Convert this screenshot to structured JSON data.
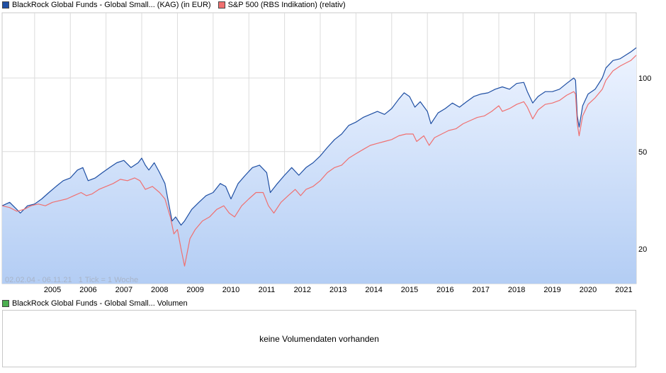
{
  "legend_top": [
    {
      "label": "BlackRock Global Funds - Global Small... (KAG) (in EUR)",
      "color": "#1f4fa3"
    },
    {
      "label": "S&P 500 (RBS Indikation) (relativ)",
      "color": "#f07070"
    }
  ],
  "legend_bottom": {
    "label": "BlackRock Global Funds - Global Small... Volumen",
    "color": "#4caf50"
  },
  "range_note": "02.02.04 - 06.11.21   1 Tick = 1 Woche",
  "volume_message": "keine Volumendaten vorhanden",
  "chart_data": {
    "type": "line",
    "y_scale": "log",
    "y_ticks": [
      20,
      50,
      100
    ],
    "x_tick_labels": [
      "2005",
      "2006",
      "2007",
      "2008",
      "2009",
      "2010",
      "2011",
      "2012",
      "2013",
      "2014",
      "2015",
      "2016",
      "2017",
      "2018",
      "2019",
      "2020",
      "2021"
    ],
    "x_range": [
      2004.09,
      2021.85
    ],
    "y_range": [
      14.4,
      185
    ],
    "grid": true,
    "legend_position": "top-left",
    "series": [
      {
        "name": "BlackRock Global Funds - Global Small... (KAG) (in EUR)",
        "color": "#1f4fa3",
        "fill": true,
        "points": [
          [
            2004.09,
            30
          ],
          [
            2004.3,
            31
          ],
          [
            2004.5,
            29
          ],
          [
            2004.6,
            28
          ],
          [
            2004.8,
            30
          ],
          [
            2005.0,
            30.5
          ],
          [
            2005.2,
            32
          ],
          [
            2005.4,
            34
          ],
          [
            2005.6,
            36
          ],
          [
            2005.8,
            38
          ],
          [
            2006.0,
            39
          ],
          [
            2006.2,
            42
          ],
          [
            2006.35,
            43
          ],
          [
            2006.5,
            38
          ],
          [
            2006.7,
            39
          ],
          [
            2006.9,
            41
          ],
          [
            2007.1,
            43
          ],
          [
            2007.3,
            45
          ],
          [
            2007.5,
            46
          ],
          [
            2007.7,
            43
          ],
          [
            2007.9,
            45
          ],
          [
            2008.0,
            47
          ],
          [
            2008.1,
            44
          ],
          [
            2008.2,
            42
          ],
          [
            2008.35,
            45
          ],
          [
            2008.5,
            41
          ],
          [
            2008.65,
            37
          ],
          [
            2008.75,
            31
          ],
          [
            2008.85,
            26
          ],
          [
            2008.95,
            27
          ],
          [
            2009.1,
            25
          ],
          [
            2009.2,
            26
          ],
          [
            2009.4,
            29
          ],
          [
            2009.6,
            31
          ],
          [
            2009.8,
            33
          ],
          [
            2010.0,
            34
          ],
          [
            2010.2,
            37
          ],
          [
            2010.35,
            36
          ],
          [
            2010.5,
            32
          ],
          [
            2010.7,
            37
          ],
          [
            2010.9,
            40
          ],
          [
            2011.1,
            43
          ],
          [
            2011.3,
            44
          ],
          [
            2011.5,
            41
          ],
          [
            2011.6,
            34
          ],
          [
            2011.8,
            37
          ],
          [
            2012.0,
            40
          ],
          [
            2012.2,
            43
          ],
          [
            2012.4,
            40
          ],
          [
            2012.6,
            43
          ],
          [
            2012.8,
            45
          ],
          [
            2013.0,
            48
          ],
          [
            2013.2,
            52
          ],
          [
            2013.4,
            56
          ],
          [
            2013.6,
            59
          ],
          [
            2013.8,
            64
          ],
          [
            2014.0,
            66
          ],
          [
            2014.2,
            69
          ],
          [
            2014.4,
            71
          ],
          [
            2014.6,
            73
          ],
          [
            2014.8,
            71
          ],
          [
            2015.0,
            75
          ],
          [
            2015.2,
            82
          ],
          [
            2015.35,
            87
          ],
          [
            2015.5,
            84
          ],
          [
            2015.65,
            76
          ],
          [
            2015.8,
            80
          ],
          [
            2016.0,
            73
          ],
          [
            2016.1,
            65
          ],
          [
            2016.3,
            72
          ],
          [
            2016.5,
            75
          ],
          [
            2016.7,
            79
          ],
          [
            2016.9,
            76
          ],
          [
            2017.1,
            80
          ],
          [
            2017.3,
            84
          ],
          [
            2017.5,
            86
          ],
          [
            2017.7,
            87
          ],
          [
            2017.9,
            90
          ],
          [
            2018.1,
            92
          ],
          [
            2018.3,
            90
          ],
          [
            2018.5,
            95
          ],
          [
            2018.7,
            96
          ],
          [
            2018.8,
            88
          ],
          [
            2018.95,
            79
          ],
          [
            2019.1,
            84
          ],
          [
            2019.3,
            88
          ],
          [
            2019.5,
            88
          ],
          [
            2019.7,
            90
          ],
          [
            2019.9,
            95
          ],
          [
            2020.1,
            100
          ],
          [
            2020.15,
            98
          ],
          [
            2020.2,
            70
          ],
          [
            2020.25,
            63
          ],
          [
            2020.35,
            77
          ],
          [
            2020.5,
            86
          ],
          [
            2020.7,
            90
          ],
          [
            2020.9,
            100
          ],
          [
            2021.0,
            110
          ],
          [
            2021.2,
            118
          ],
          [
            2021.4,
            120
          ],
          [
            2021.55,
            124
          ],
          [
            2021.7,
            128
          ],
          [
            2021.85,
            133
          ]
        ]
      },
      {
        "name": "S&P 500 (RBS Indikation) (relativ)",
        "color": "#f07070",
        "fill": false,
        "points": [
          [
            2004.09,
            30
          ],
          [
            2004.3,
            29.5
          ],
          [
            2004.5,
            28.5
          ],
          [
            2004.7,
            29
          ],
          [
            2004.9,
            30
          ],
          [
            2005.1,
            30.5
          ],
          [
            2005.3,
            30
          ],
          [
            2005.5,
            31
          ],
          [
            2005.7,
            31.5
          ],
          [
            2005.9,
            32
          ],
          [
            2006.1,
            33
          ],
          [
            2006.3,
            34
          ],
          [
            2006.45,
            33
          ],
          [
            2006.6,
            33.5
          ],
          [
            2006.8,
            35
          ],
          [
            2007.0,
            36
          ],
          [
            2007.2,
            37
          ],
          [
            2007.4,
            38.5
          ],
          [
            2007.6,
            38
          ],
          [
            2007.8,
            39
          ],
          [
            2007.95,
            38
          ],
          [
            2008.1,
            35
          ],
          [
            2008.3,
            36
          ],
          [
            2008.5,
            34
          ],
          [
            2008.65,
            32
          ],
          [
            2008.8,
            27
          ],
          [
            2008.9,
            23
          ],
          [
            2009.0,
            24
          ],
          [
            2009.1,
            20
          ],
          [
            2009.2,
            17
          ],
          [
            2009.35,
            22
          ],
          [
            2009.5,
            24
          ],
          [
            2009.7,
            26
          ],
          [
            2009.9,
            27
          ],
          [
            2010.1,
            29
          ],
          [
            2010.3,
            30
          ],
          [
            2010.45,
            28
          ],
          [
            2010.6,
            27
          ],
          [
            2010.8,
            30
          ],
          [
            2011.0,
            32
          ],
          [
            2011.2,
            34
          ],
          [
            2011.4,
            34
          ],
          [
            2011.55,
            30
          ],
          [
            2011.7,
            28
          ],
          [
            2011.9,
            31
          ],
          [
            2012.1,
            33
          ],
          [
            2012.3,
            35
          ],
          [
            2012.45,
            33
          ],
          [
            2012.6,
            35
          ],
          [
            2012.8,
            36
          ],
          [
            2013.0,
            38
          ],
          [
            2013.2,
            41
          ],
          [
            2013.4,
            43
          ],
          [
            2013.6,
            44
          ],
          [
            2013.8,
            47
          ],
          [
            2014.0,
            49
          ],
          [
            2014.2,
            51
          ],
          [
            2014.4,
            53
          ],
          [
            2014.6,
            54
          ],
          [
            2014.8,
            55
          ],
          [
            2015.0,
            56
          ],
          [
            2015.2,
            58
          ],
          [
            2015.4,
            59
          ],
          [
            2015.6,
            59
          ],
          [
            2015.7,
            55
          ],
          [
            2015.9,
            58
          ],
          [
            2016.05,
            53
          ],
          [
            2016.2,
            57
          ],
          [
            2016.4,
            59
          ],
          [
            2016.6,
            61
          ],
          [
            2016.8,
            62
          ],
          [
            2017.0,
            65
          ],
          [
            2017.2,
            67
          ],
          [
            2017.4,
            69
          ],
          [
            2017.6,
            70
          ],
          [
            2017.8,
            73
          ],
          [
            2018.0,
            77
          ],
          [
            2018.1,
            73
          ],
          [
            2018.3,
            75
          ],
          [
            2018.5,
            78
          ],
          [
            2018.7,
            80
          ],
          [
            2018.8,
            76
          ],
          [
            2018.95,
            68
          ],
          [
            2019.1,
            74
          ],
          [
            2019.3,
            78
          ],
          [
            2019.5,
            79
          ],
          [
            2019.7,
            81
          ],
          [
            2019.9,
            85
          ],
          [
            2020.1,
            88
          ],
          [
            2020.15,
            86
          ],
          [
            2020.2,
            65
          ],
          [
            2020.25,
            58
          ],
          [
            2020.35,
            70
          ],
          [
            2020.5,
            78
          ],
          [
            2020.7,
            83
          ],
          [
            2020.9,
            90
          ],
          [
            2021.0,
            98
          ],
          [
            2021.2,
            107
          ],
          [
            2021.4,
            112
          ],
          [
            2021.55,
            115
          ],
          [
            2021.7,
            118
          ],
          [
            2021.85,
            124
          ]
        ]
      }
    ]
  }
}
